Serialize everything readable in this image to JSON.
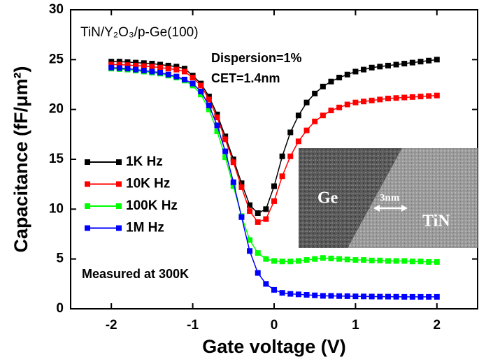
{
  "chart_data": {
    "type": "line",
    "title": "TiN/Y₂O₃/p-Ge(100)",
    "annotations": [
      "Dispersion=1%",
      "CET=1.4nm",
      "Measured at 300K"
    ],
    "inset_labels": [
      "Ge",
      "3nm",
      "TiN"
    ],
    "x_label": "Gate voltage (V)",
    "y_label": "Capacitance (fF/μm²)",
    "xlim": [
      -2.5,
      2.5
    ],
    "xticks": [
      -2,
      -1,
      0,
      1,
      2
    ],
    "ylim": [
      0,
      30
    ],
    "yticks": [
      0,
      5,
      10,
      15,
      20,
      25,
      30
    ],
    "legend": "left",
    "x": [
      -2.0,
      -1.9,
      -1.8,
      -1.7,
      -1.6,
      -1.5,
      -1.4,
      -1.3,
      -1.2,
      -1.1,
      -1.0,
      -0.9,
      -0.8,
      -0.7,
      -0.6,
      -0.5,
      -0.4,
      -0.3,
      -0.2,
      -0.1,
      0.0,
      0.1,
      0.2,
      0.3,
      0.4,
      0.5,
      0.6,
      0.7,
      0.8,
      0.9,
      1.0,
      1.1,
      1.2,
      1.3,
      1.4,
      1.5,
      1.6,
      1.7,
      1.8,
      1.9,
      2.0
    ],
    "series": [
      {
        "name": "1K Hz",
        "color": "#000000",
        "values": [
          24.8,
          24.8,
          24.75,
          24.7,
          24.65,
          24.6,
          24.5,
          24.4,
          24.3,
          24.1,
          23.4,
          22.6,
          21.3,
          19.5,
          17.3,
          15.0,
          12.6,
          10.4,
          9.6,
          10.0,
          12.3,
          15.3,
          17.7,
          19.4,
          20.7,
          21.6,
          22.3,
          22.8,
          23.2,
          23.5,
          23.8,
          24.0,
          24.2,
          24.3,
          24.4,
          24.5,
          24.6,
          24.7,
          24.8,
          24.9,
          25.0
        ]
      },
      {
        "name": "10K Hz",
        "color": "#ff0000",
        "values": [
          24.5,
          24.5,
          24.45,
          24.4,
          24.35,
          24.3,
          24.2,
          24.1,
          24.0,
          23.8,
          23.2,
          22.4,
          21.0,
          19.2,
          17.0,
          14.7,
          12.2,
          9.8,
          8.7,
          9.0,
          10.8,
          13.3,
          15.3,
          16.8,
          17.9,
          18.8,
          19.4,
          19.9,
          20.2,
          20.5,
          20.7,
          20.8,
          20.9,
          21.0,
          21.1,
          21.15,
          21.2,
          21.25,
          21.3,
          21.35,
          21.4
        ]
      },
      {
        "name": "100K Hz",
        "color": "#00ff00",
        "values": [
          24.1,
          24.05,
          24.0,
          23.9,
          23.8,
          23.7,
          23.6,
          23.4,
          23.2,
          22.9,
          22.4,
          21.5,
          20.0,
          17.8,
          15.2,
          12.3,
          9.3,
          6.9,
          5.6,
          5.0,
          4.8,
          4.75,
          4.75,
          4.8,
          4.9,
          5.0,
          5.1,
          5.05,
          5.0,
          4.95,
          4.9,
          4.9,
          4.85,
          4.85,
          4.8,
          4.8,
          4.8,
          4.75,
          4.75,
          4.7,
          4.7
        ]
      },
      {
        "name": "1M Hz",
        "color": "#0000ff",
        "values": [
          24.2,
          24.15,
          24.1,
          24.0,
          23.9,
          23.8,
          23.7,
          23.5,
          23.3,
          23.0,
          22.6,
          21.8,
          20.4,
          18.4,
          15.8,
          12.7,
          9.2,
          5.8,
          3.6,
          2.5,
          1.9,
          1.6,
          1.5,
          1.45,
          1.4,
          1.35,
          1.3,
          1.3,
          1.28,
          1.27,
          1.25,
          1.24,
          1.23,
          1.22,
          1.22,
          1.21,
          1.2,
          1.2,
          1.2,
          1.2,
          1.2
        ]
      }
    ]
  }
}
